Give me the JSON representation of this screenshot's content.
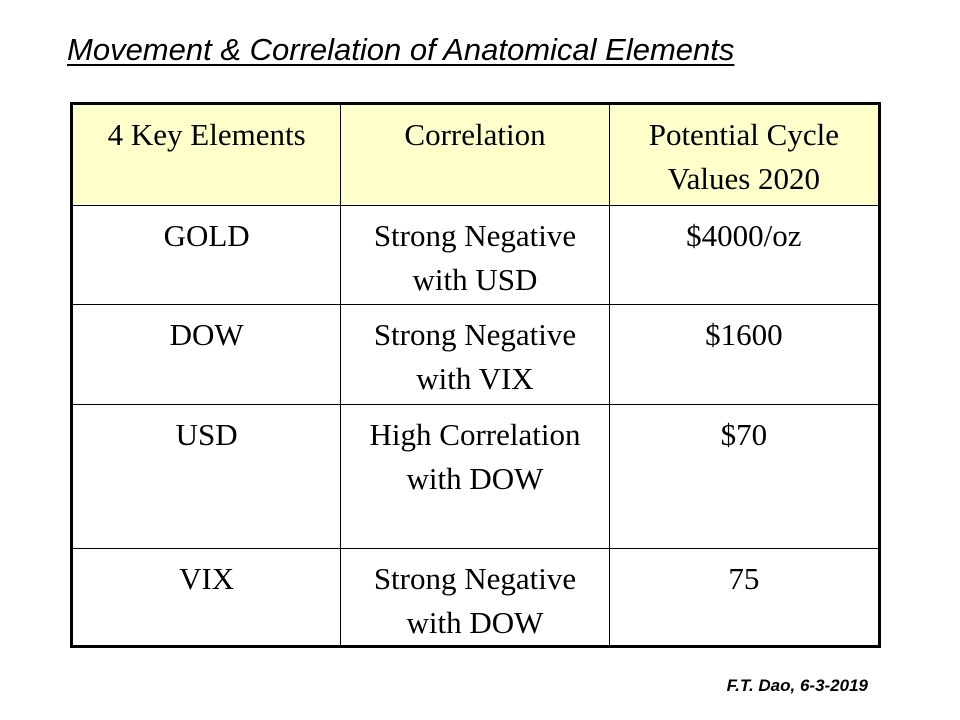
{
  "title": "Movement & Correlation of Anatomical Elements",
  "table": {
    "headers": [
      "4 Key Elements",
      "Correlation",
      "Potential Cycle Values 2020"
    ],
    "rows": [
      [
        "GOLD",
        "Strong Negative with USD",
        "$4000/oz"
      ],
      [
        "DOW",
        "Strong Negative with VIX",
        "$1600"
      ],
      [
        "USD",
        "High Correlation with DOW",
        "$70"
      ],
      [
        "VIX",
        "Strong Negative with DOW",
        "75"
      ]
    ]
  },
  "footer": "F.T. Dao, 6-3-2019",
  "colors": {
    "header_bg": "#ffffcc",
    "border": "#000000"
  }
}
